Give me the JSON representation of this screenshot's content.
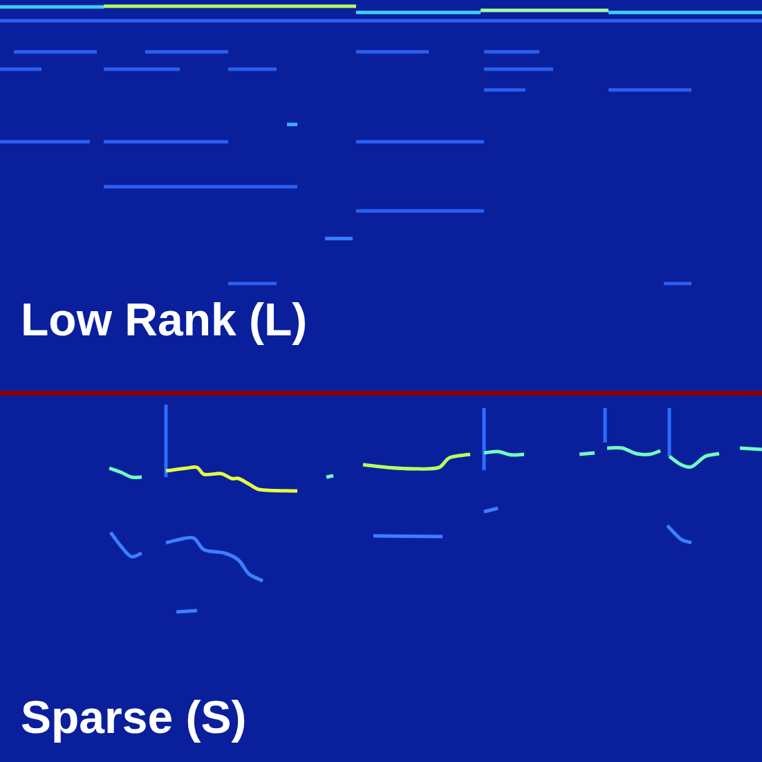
{
  "chart_data": [
    {
      "type": "line",
      "title": "Low Rank (L)",
      "xlim": [
        0,
        1102
      ],
      "ylim": [
        0,
        565
      ],
      "grid": false,
      "tick_labels": false,
      "series": [
        {
          "color": "#3fd0ff",
          "values": [
            [
              0,
              555
            ],
            [
              150,
              555
            ]
          ]
        },
        {
          "color": "#b0ff60",
          "values": [
            [
              150,
              556
            ],
            [
              515,
              556
            ]
          ]
        },
        {
          "color": "#3fd0ff",
          "values": [
            [
              515,
              547
            ],
            [
              695,
              547
            ]
          ]
        },
        {
          "color": "#a0ffa0",
          "values": [
            [
              695,
              550
            ],
            [
              880,
              550
            ]
          ]
        },
        {
          "color": "#3fd0ff",
          "values": [
            [
              880,
              547
            ],
            [
              1102,
              547
            ]
          ]
        },
        {
          "color": "#2a5ff0",
          "values": [
            [
              0,
              535
            ],
            [
              1102,
              535
            ]
          ]
        },
        {
          "color": "#2a5ff0",
          "values": [
            [
              20,
              490
            ],
            [
              140,
              490
            ]
          ]
        },
        {
          "color": "#2a5ff0",
          "values": [
            [
              210,
              490
            ],
            [
              330,
              490
            ]
          ]
        },
        {
          "color": "#2a5ff0",
          "values": [
            [
              515,
              490
            ],
            [
              620,
              490
            ]
          ]
        },
        {
          "color": "#2a5ff0",
          "values": [
            [
              700,
              490
            ],
            [
              780,
              490
            ]
          ]
        },
        {
          "color": "#2a5ff0",
          "values": [
            [
              0,
              465
            ],
            [
              60,
              465
            ]
          ]
        },
        {
          "color": "#2a5ff0",
          "values": [
            [
              150,
              465
            ],
            [
              260,
              465
            ]
          ]
        },
        {
          "color": "#2a5ff0",
          "values": [
            [
              330,
              465
            ],
            [
              400,
              465
            ]
          ]
        },
        {
          "color": "#2a5ff0",
          "values": [
            [
              700,
              465
            ],
            [
              800,
              465
            ]
          ]
        },
        {
          "color": "#2a5ff0",
          "values": [
            [
              700,
              435
            ],
            [
              760,
              435
            ]
          ]
        },
        {
          "color": "#2a5ff0",
          "values": [
            [
              880,
              435
            ],
            [
              1000,
              435
            ]
          ]
        },
        {
          "color": "#3fb0ff",
          "values": [
            [
              415,
              385
            ],
            [
              430,
              385
            ]
          ]
        },
        {
          "color": "#2a5ff0",
          "values": [
            [
              0,
              360
            ],
            [
              130,
              360
            ]
          ]
        },
        {
          "color": "#2a5ff0",
          "values": [
            [
              150,
              360
            ],
            [
              330,
              360
            ]
          ]
        },
        {
          "color": "#2a5ff0",
          "values": [
            [
              515,
              360
            ],
            [
              700,
              360
            ]
          ]
        },
        {
          "color": "#2a5ff0",
          "values": [
            [
              150,
              295
            ],
            [
              430,
              295
            ]
          ]
        },
        {
          "color": "#2a5ff0",
          "values": [
            [
              515,
              260
            ],
            [
              700,
              260
            ]
          ]
        },
        {
          "color": "#3a7fff",
          "values": [
            [
              470,
              220
            ],
            [
              510,
              220
            ]
          ]
        },
        {
          "color": "#2a5ff0",
          "values": [
            [
              330,
              155
            ],
            [
              400,
              155
            ]
          ]
        },
        {
          "color": "#2a5ff0",
          "values": [
            [
              960,
              155
            ],
            [
              1000,
              155
            ]
          ]
        }
      ]
    },
    {
      "type": "line",
      "title": "Sparse (S)",
      "xlim": [
        0,
        1102
      ],
      "ylim": [
        0,
        530
      ],
      "grid": false,
      "tick_labels": false,
      "series": [
        {
          "color": "#70ffc0",
          "values": [
            [
              158,
              425
            ],
            [
              175,
              419
            ],
            [
              190,
              412
            ],
            [
              205,
              412
            ]
          ]
        },
        {
          "color": "#e8ff40",
          "values": [
            [
              240,
              421
            ],
            [
              270,
              425
            ],
            [
              285,
              426
            ],
            [
              295,
              416
            ],
            [
              320,
              417
            ],
            [
              335,
              410
            ],
            [
              345,
              410
            ],
            [
              360,
              402
            ],
            [
              375,
              394
            ],
            [
              430,
              392
            ]
          ]
        },
        {
          "color": "#70ffc0",
          "values": [
            [
              472,
              412
            ],
            [
              482,
              414
            ]
          ]
        },
        {
          "color": "#b8ff60",
          "values": [
            [
              525,
              430
            ],
            [
              560,
              426
            ],
            [
              600,
              424
            ],
            [
              635,
              426
            ],
            [
              650,
              440
            ],
            [
              680,
              445
            ]
          ]
        },
        {
          "color": "#70ffc0",
          "values": [
            [
              700,
              447
            ],
            [
              720,
              449
            ],
            [
              740,
              444
            ],
            [
              758,
              445
            ]
          ]
        },
        {
          "color": "#70ffc0",
          "values": [
            [
              838,
              445
            ],
            [
              860,
              447
            ]
          ]
        },
        {
          "color": "#70ffc0",
          "values": [
            [
              878,
              454
            ],
            [
              900,
              454
            ],
            [
              920,
              446
            ],
            [
              940,
              445
            ],
            [
              955,
              450
            ]
          ]
        },
        {
          "color": "#70ffc0",
          "values": [
            [
              968,
              442
            ],
            [
              985,
              430
            ],
            [
              1000,
              427
            ],
            [
              1020,
              442
            ],
            [
              1040,
              446
            ]
          ]
        },
        {
          "color": "#70ffc0",
          "values": [
            [
              1070,
              454
            ],
            [
              1102,
              452
            ]
          ]
        },
        {
          "color": "#3a80ff",
          "values": [
            [
              160,
              332
            ],
            [
              175,
              312
            ],
            [
              190,
              297
            ],
            [
              205,
              302
            ]
          ]
        },
        {
          "color": "#3a80ff",
          "values": [
            [
              240,
              317
            ],
            [
              260,
              322
            ],
            [
              280,
              324
            ],
            [
              295,
              307
            ],
            [
              325,
              302
            ],
            [
              345,
              292
            ],
            [
              360,
              272
            ],
            [
              380,
              262
            ]
          ]
        },
        {
          "color": "#3a80ff",
          "values": [
            [
              540,
              327
            ],
            [
              640,
              326
            ]
          ]
        },
        {
          "color": "#3a80ff",
          "values": [
            [
              700,
              362
            ],
            [
              720,
              367
            ]
          ]
        },
        {
          "color": "#3a80ff",
          "values": [
            [
              965,
              342
            ],
            [
              985,
              322
            ],
            [
              1000,
              317
            ]
          ]
        },
        {
          "color": "#3a80ff",
          "values": [
            [
              255,
              217
            ],
            [
              285,
              219
            ]
          ]
        },
        {
          "color": "#2a6fff",
          "values": [
            [
              240,
              517
            ],
            [
              240,
              412
            ]
          ]
        },
        {
          "color": "#2a6fff",
          "values": [
            [
              700,
              512
            ],
            [
              700,
              422
            ]
          ]
        },
        {
          "color": "#2a6fff",
          "values": [
            [
              968,
              512
            ],
            [
              968,
              442
            ]
          ]
        },
        {
          "color": "#2a6fff",
          "values": [
            [
              875,
              512
            ],
            [
              875,
              462
            ]
          ]
        }
      ]
    }
  ]
}
